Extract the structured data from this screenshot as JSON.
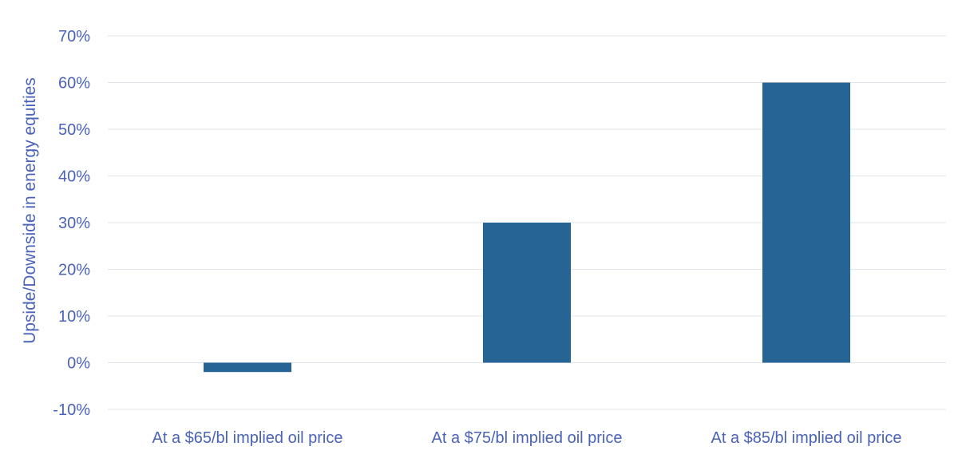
{
  "chart_data": {
    "type": "bar",
    "categories": [
      "At a $65/bl implied oil price",
      "At a $75/bl implied oil price",
      "At a $85/bl implied oil price"
    ],
    "values": [
      -2,
      30,
      60
    ],
    "title": "",
    "xlabel": "",
    "ylabel": "Upside/Downside in energy equities",
    "ylim": [
      -10,
      70
    ],
    "yticks": [
      -10,
      0,
      10,
      20,
      30,
      40,
      50,
      60,
      70
    ],
    "ytick_labels": [
      "-10%",
      "0%",
      "10%",
      "20%",
      "30%",
      "40%",
      "50%",
      "60%",
      "70%"
    ],
    "grid": true,
    "legend": "none",
    "colors": {
      "bar": "#256494",
      "text": "#4a62b8",
      "grid": "#dfe3ea"
    }
  }
}
